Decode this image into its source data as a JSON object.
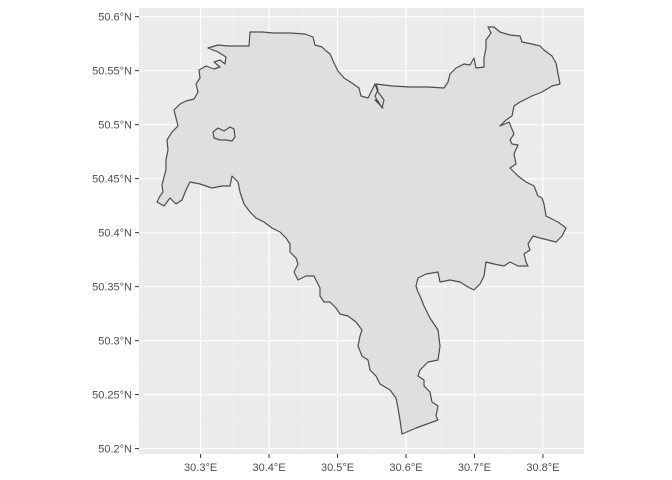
{
  "map": {
    "panel_background": "#ebebeb",
    "region_fill": "#dfdfdf",
    "region_stroke": "#4d4d4d",
    "x_axis": {
      "ticks": [
        30.3,
        30.4,
        30.5,
        30.6,
        30.7,
        30.8
      ],
      "labels": [
        "30.3°E",
        "30.4°E",
        "30.5°E",
        "30.6°E",
        "30.7°E",
        "30.8°E"
      ],
      "range": [
        30.21,
        30.86
      ]
    },
    "y_axis": {
      "ticks": [
        50.2,
        50.25,
        50.3,
        50.35,
        50.4,
        50.45,
        50.5,
        50.55,
        50.6
      ],
      "labels": [
        "50.2°N",
        "50.25°N",
        "50.3°N",
        "50.35°N",
        "50.4°N",
        "50.45°N",
        "50.5°N",
        "50.55°N",
        "50.6°N"
      ],
      "range": [
        50.195,
        50.608
      ]
    }
  }
}
